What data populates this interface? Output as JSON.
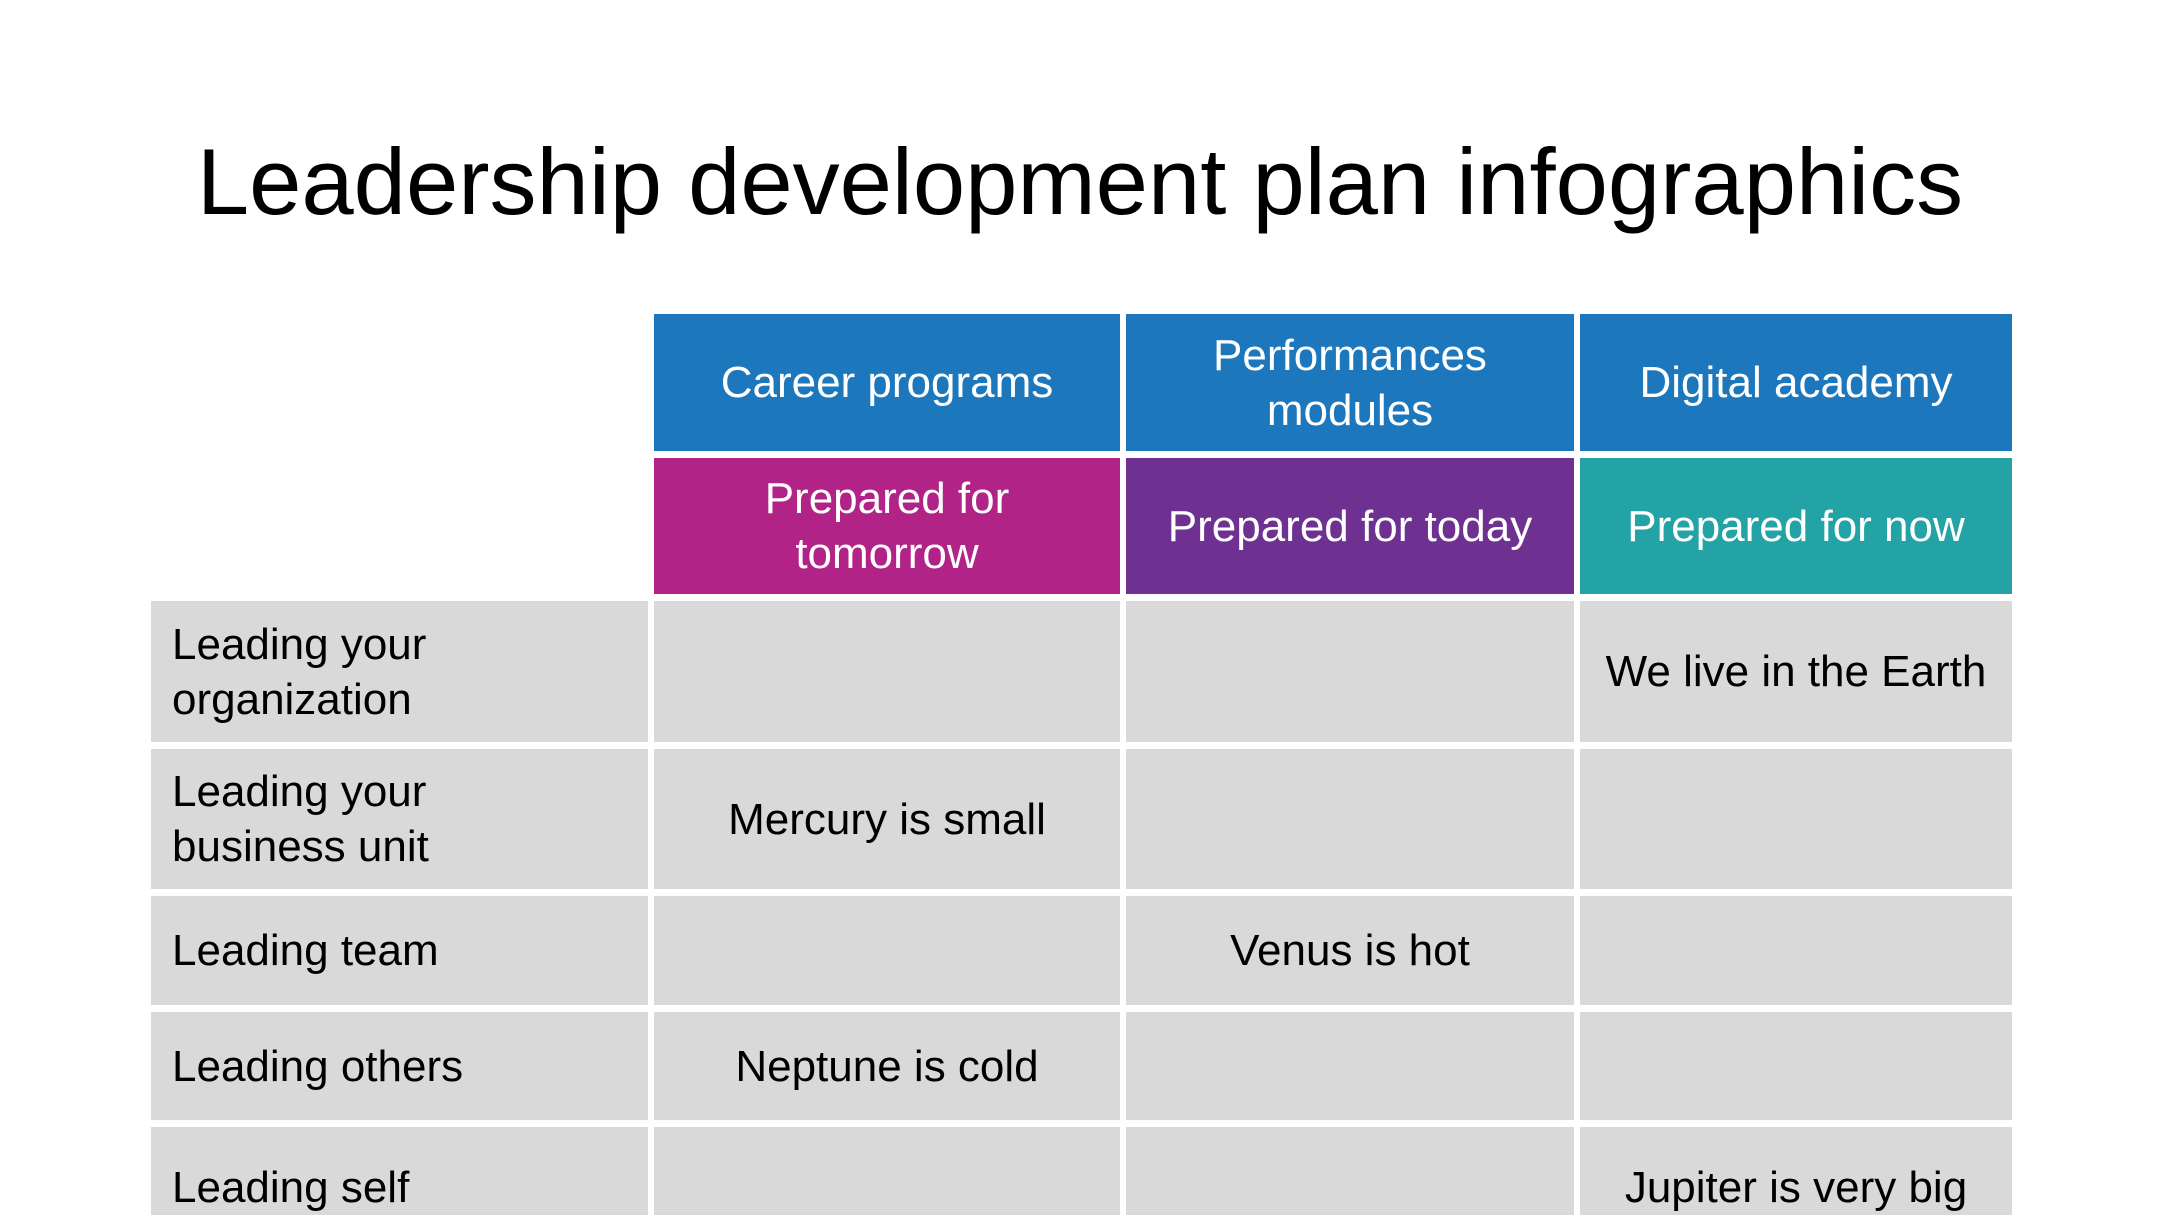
{
  "slide": {
    "title": "Leadership development plan infographics"
  },
  "colors": {
    "header_blue": "#1c77bd",
    "subheader_magenta": "#b22387",
    "subheader_purple": "#6e3192",
    "subheader_teal": "#24a3a6",
    "cell_gray": "#d9d9d9",
    "header_text": "#ffffff",
    "body_text": "#000000",
    "background": "#ffffff"
  },
  "table": {
    "column_headers": [
      {
        "label": "Career programs",
        "color": "#1c77bd"
      },
      {
        "label": "Performances modules",
        "color": "#1c77bd"
      },
      {
        "label": "Digital academy",
        "color": "#1c77bd"
      }
    ],
    "subheaders": [
      {
        "label": "Prepared for tomorrow",
        "color": "#b22387"
      },
      {
        "label": "Prepared for today",
        "color": "#6e3192"
      },
      {
        "label": "Prepared for now",
        "color": "#24a3a6"
      }
    ],
    "rows": [
      {
        "label": "Leading your organization",
        "cells": [
          "",
          "",
          "We live in the Earth"
        ]
      },
      {
        "label": "Leading your business unit",
        "cells": [
          "Mercury is small",
          "",
          ""
        ]
      },
      {
        "label": "Leading team",
        "cells": [
          "",
          "Venus is hot",
          ""
        ]
      },
      {
        "label": "Leading others",
        "cells": [
          "Neptune is cold",
          "",
          ""
        ]
      },
      {
        "label": "Leading self",
        "cells": [
          "",
          "",
          "Jupiter is very big"
        ]
      }
    ]
  }
}
